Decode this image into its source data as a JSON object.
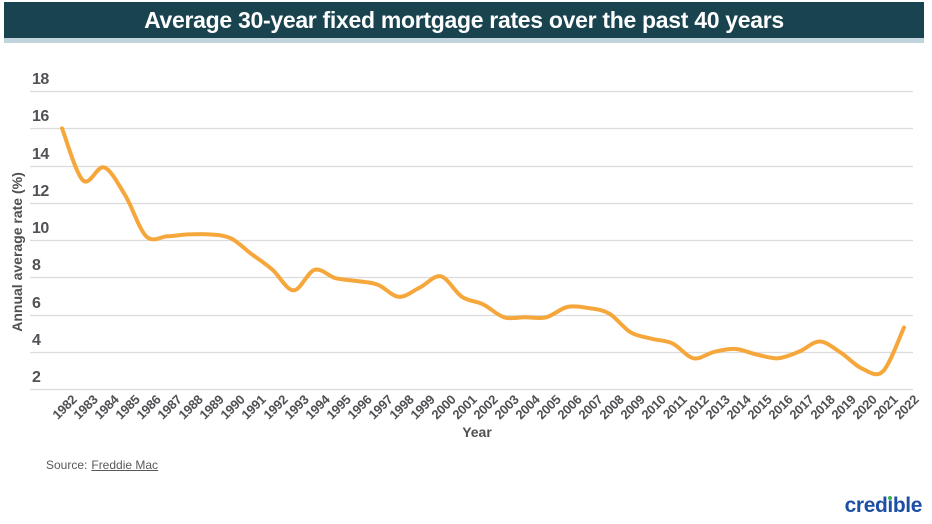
{
  "header": {
    "title": "Average 30-year fixed mortgage rates over the past 40 years"
  },
  "chart_data": {
    "type": "line",
    "title": "Average 30-year fixed mortgage rates over the past 40 years",
    "xlabel": "Year",
    "ylabel": "Annual average rate (%)",
    "grid": true,
    "legend": "none",
    "ylim": [
      2,
      18
    ],
    "yticks": [
      18,
      16,
      14,
      12,
      10,
      8,
      6,
      4,
      2
    ],
    "x": [
      1982,
      1983,
      1984,
      1985,
      1986,
      1987,
      1988,
      1989,
      1990,
      1991,
      1992,
      1993,
      1994,
      1995,
      1996,
      1997,
      1998,
      1999,
      2000,
      2001,
      2002,
      2003,
      2004,
      2005,
      2006,
      2007,
      2008,
      2009,
      2010,
      2011,
      2012,
      2013,
      2014,
      2015,
      2016,
      2017,
      2018,
      2019,
      2020,
      2021,
      2022
    ],
    "series": [
      {
        "name": "Average 30-year fixed mortgage rate",
        "color": "#F6A73C",
        "values": [
          16.0,
          13.2,
          13.9,
          12.4,
          10.2,
          10.2,
          10.3,
          10.3,
          10.1,
          9.25,
          8.4,
          7.3,
          8.4,
          7.95,
          7.8,
          7.6,
          6.95,
          7.45,
          8.05,
          6.95,
          6.55,
          5.85,
          5.85,
          5.85,
          6.4,
          6.35,
          6.05,
          5.05,
          4.7,
          4.45,
          3.65,
          4.0,
          4.15,
          3.85,
          3.65,
          4.0,
          4.55,
          3.95,
          3.1,
          2.95,
          5.3
        ]
      }
    ]
  },
  "source": {
    "prefix": "Source:",
    "link_text": "Freddie Mac"
  },
  "branding": {
    "logo_text": "credible",
    "logo_color": "#1D4FA4",
    "dot_color": "#3EB049"
  },
  "colors": {
    "header_bg": "#18434F",
    "header_text": "#FFFFFF",
    "header_underline": "#C2D4DB",
    "grid": "#DCDCDC",
    "axis_text": "#4F5053",
    "tick_text": "#515256",
    "line": "#F6A73C",
    "source_text": "#58595B"
  }
}
